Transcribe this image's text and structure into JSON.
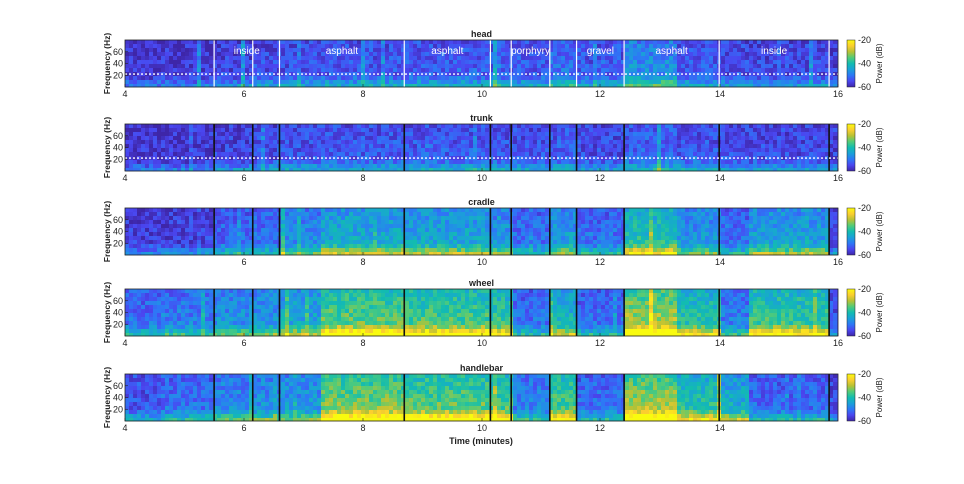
{
  "chart_data": {
    "type": "heatmap",
    "xlabel": "Time (minutes)",
    "xlim": [
      4,
      16
    ],
    "xticks": [
      4,
      6,
      8,
      10,
      12,
      14,
      16
    ],
    "ylabel": "Frequency (Hz)",
    "ylim": [
      0,
      80
    ],
    "yticks": [
      20,
      40,
      60
    ],
    "colorbar": {
      "label": "Power (dB)",
      "range": [
        -60,
        -20
      ],
      "ticks": [
        -20,
        -40,
        -60
      ],
      "colormap": [
        "#3e26a8",
        "#4a46f0",
        "#2d78f6",
        "#1aa1d8",
        "#12bcb0",
        "#52cb78",
        "#b8c234",
        "#fbce2f",
        "#f9fb0e"
      ]
    },
    "segment_boundaries_min": [
      5.5,
      6.15,
      6.6,
      8.7,
      10.15,
      10.5,
      11.15,
      11.6,
      12.4,
      14.0,
      15.85
    ],
    "segment_labels": [
      {
        "label": "inside",
        "start": 5.5,
        "end": 6.6
      },
      {
        "label": "asphalt",
        "start": 6.6,
        "end": 8.7
      },
      {
        "label": "asphalt",
        "start": 8.7,
        "end": 10.15
      },
      {
        "label": "porphyry",
        "start": 10.5,
        "end": 11.15
      },
      {
        "label": "gravel",
        "start": 11.6,
        "end": 12.4
      },
      {
        "label": "asphalt",
        "start": 12.4,
        "end": 14.0
      },
      {
        "label": "inside",
        "start": 14.0,
        "end": 15.85
      }
    ],
    "panels": [
      {
        "title": "head",
        "xticks_shown": [
          4,
          6,
          8,
          10,
          12,
          14,
          16
        ],
        "threshold_hz": 22
      },
      {
        "title": "trunk",
        "xticks_shown": [
          4,
          6,
          8,
          10,
          12,
          14,
          16
        ],
        "threshold_hz": 22
      },
      {
        "title": "cradle",
        "xticks_shown": [
          6,
          8,
          10,
          12,
          14,
          16
        ]
      },
      {
        "title": "wheel",
        "xticks_shown": [
          4,
          6,
          8,
          10,
          12,
          14,
          16
        ]
      },
      {
        "title": "handlebar",
        "xticks_shown": [
          4,
          6,
          8,
          10,
          12,
          14
        ]
      }
    ]
  }
}
